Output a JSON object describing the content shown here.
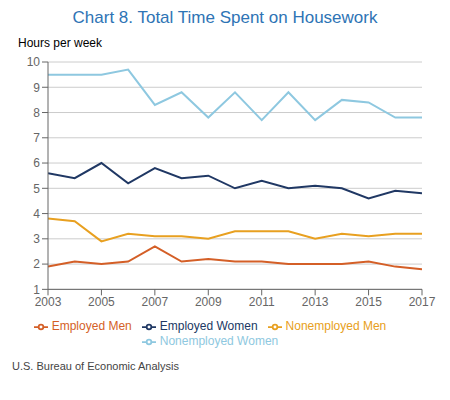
{
  "chart_data": {
    "type": "line",
    "title": "Chart 8. Total Time Spent on Housework",
    "ylabel": "Hours per week",
    "footnote": "U.S. Bureau of Economic Analysis",
    "x": [
      2003,
      2004,
      2005,
      2006,
      2007,
      2008,
      2009,
      2010,
      2011,
      2012,
      2013,
      2014,
      2015,
      2016,
      2017
    ],
    "series": [
      {
        "name": "Nonemployed Women",
        "color": "#8ec8e0",
        "values": [
          9.5,
          9.5,
          9.5,
          9.7,
          8.3,
          8.8,
          7.8,
          8.8,
          7.7,
          8.8,
          7.7,
          8.5,
          8.4,
          7.8,
          7.8
        ]
      },
      {
        "name": "Employed Women",
        "color": "#203864",
        "values": [
          5.6,
          5.4,
          6.0,
          5.2,
          5.8,
          5.4,
          5.5,
          5.0,
          5.3,
          5.0,
          5.1,
          5.0,
          4.6,
          4.9,
          4.8
        ]
      },
      {
        "name": "Nonemployed Men",
        "color": "#e8a020",
        "values": [
          3.8,
          3.7,
          2.9,
          3.2,
          3.1,
          3.1,
          3.0,
          3.3,
          3.3,
          3.3,
          3.0,
          3.2,
          3.1,
          3.2,
          3.2
        ]
      },
      {
        "name": "Employed Men",
        "color": "#d45f27",
        "values": [
          1.9,
          2.1,
          2.0,
          2.1,
          2.7,
          2.1,
          2.2,
          2.1,
          2.1,
          2.0,
          2.0,
          2.0,
          2.1,
          1.9,
          1.8
        ]
      }
    ],
    "xlim": [
      2003,
      2017
    ],
    "xticks": [
      2003,
      2005,
      2007,
      2009,
      2011,
      2013,
      2015,
      2017
    ],
    "ylim": [
      1,
      10
    ],
    "yticks": [
      1,
      2,
      3,
      4,
      5,
      6,
      7,
      8,
      9,
      10
    ],
    "grid": true,
    "legend": "bottom"
  }
}
